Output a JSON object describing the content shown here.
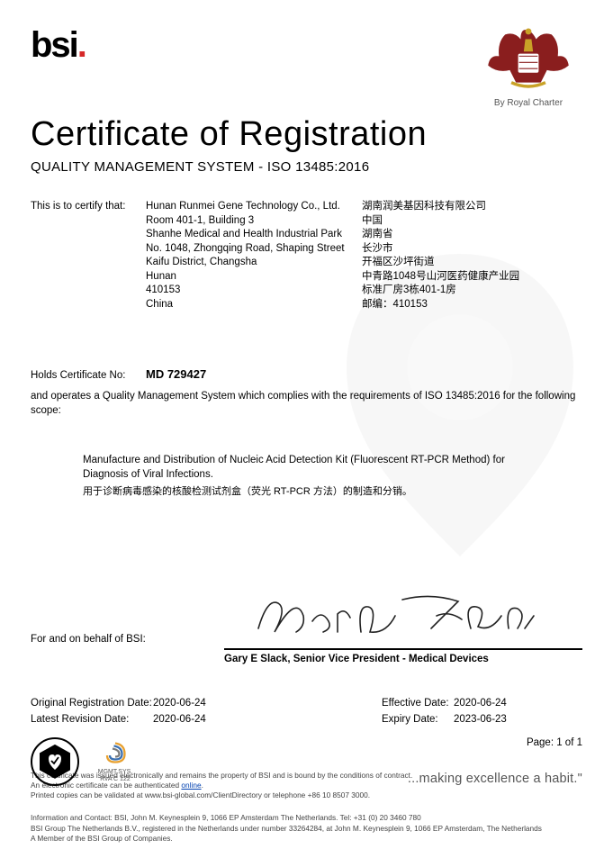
{
  "logo": {
    "text": "bsi",
    "charter": "By Royal Charter"
  },
  "title": "Certificate of Registration",
  "subtitle": "QUALITY MANAGEMENT SYSTEM - ISO 13485:2016",
  "certify_label": "This is to certify that:",
  "address_en": [
    "Hunan Runmei Gene Technology Co., Ltd.",
    "Room 401-1, Building 3",
    "Shanhe Medical and Health Industrial Park",
    "No. 1048, Zhongqing Road, Shaping Street",
    "Kaifu District, Changsha",
    "Hunan",
    "410153",
    "China"
  ],
  "address_cn": [
    "湖南润美基因科技有限公司",
    "中国",
    "湖南省",
    "长沙市",
    "开福区沙坪街道",
    "中青路1048号山河医药健康产业园",
    "标准厂房3栋401-1房",
    "邮编：410153"
  ],
  "cert_no_label": "Holds Certificate No:",
  "cert_no": "MD 729427",
  "operates": "and operates a Quality Management System which complies with the requirements of ISO 13485:2016 for the following scope:",
  "scope_en": "Manufacture and Distribution of Nucleic Acid Detection Kit (Fluorescent RT-PCR Method) for Diagnosis of Viral Infections.",
  "scope_cn": "用于诊断病毒感染的核酸检测试剂盒（荧光 RT-PCR 方法）的制造和分销。",
  "behalf": "For and on behalf of BSI:",
  "signatory": "Gary E Slack, Senior Vice President - Medical Devices",
  "dates": {
    "orig_label": "Original Registration Date:",
    "orig": "2020-06-24",
    "rev_label": "Latest Revision Date:",
    "rev": "2020-06-24",
    "eff_label": "Effective Date:",
    "eff": "2020-06-24",
    "exp_label": "Expiry Date:",
    "exp": "2023-06-23"
  },
  "mark2_lines": [
    "MGMT.SYS.",
    "RvA C 122"
  ],
  "page": "Page: 1 of 1",
  "tagline": "...making excellence a habit.\"",
  "footer": {
    "l1": "This certificate was issued electronically and remains the property of BSI and is bound by the conditions of contract.",
    "l2a": "An electronic certificate can be authenticated ",
    "l2link": "online",
    "l2b": ".",
    "l3": "Printed copies can be validated at www.bsi-global.com/ClientDirectory or telephone +86 10 8507 3000.",
    "l4": "Information and Contact: BSI, John M. Keynesplein 9, 1066 EP Amsterdam The Netherlands. Tel: +31 (0) 20 3460 780",
    "l5": "BSI Group The Netherlands B.V., registered in the Netherlands under number 33264284, at John M. Keynesplein 9, 1066 EP Amsterdam, The Netherlands",
    "l6": "A Member of the BSI Group of Companies."
  },
  "colors": {
    "dot": "#d62828",
    "text": "#000000",
    "muted": "#555555",
    "link": "#0040b0"
  }
}
